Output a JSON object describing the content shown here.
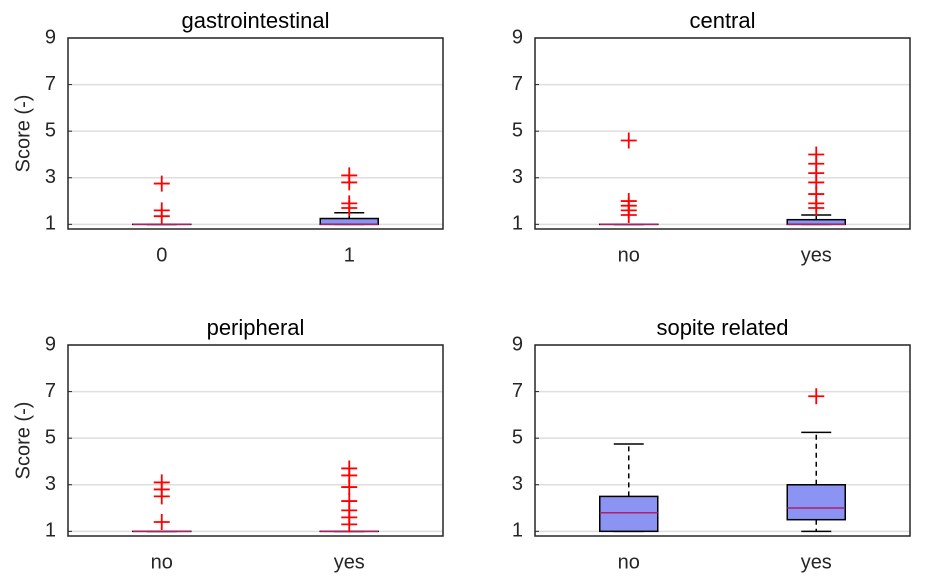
{
  "chart_data": [
    {
      "type": "box",
      "title": "gastrointestinal",
      "ylabel": "Score (-)",
      "categories": [
        "0",
        "1"
      ],
      "boxes": [
        {
          "min": 1,
          "q1": 1,
          "median": 1,
          "q3": 1,
          "max": 1,
          "outliers": [
            2.75,
            1.6,
            1.35
          ]
        },
        {
          "min": 1,
          "q1": 1,
          "median": 1,
          "q3": 1.25,
          "max": 1.5,
          "outliers": [
            3.1,
            2.8,
            1.9,
            1.7
          ]
        }
      ],
      "ylim": [
        0.8,
        9
      ],
      "yticks": [
        1,
        3,
        5,
        7,
        9
      ],
      "grid": true,
      "box_color": "#8b93f3",
      "median_color": "#b0206a",
      "outlier_color": "#ff0000"
    },
    {
      "type": "box",
      "title": "central",
      "categories": [
        "no",
        "yes"
      ],
      "boxes": [
        {
          "min": 1,
          "q1": 1,
          "median": 1,
          "q3": 1,
          "max": 1,
          "outliers": [
            4.6,
            2.0,
            1.8,
            1.6,
            1.4
          ]
        },
        {
          "min": 1,
          "q1": 1,
          "median": 1,
          "q3": 1.2,
          "max": 1.4,
          "outliers": [
            4.0,
            3.6,
            3.2,
            2.8,
            2.3,
            1.9,
            1.7
          ]
        }
      ],
      "ylim": [
        0.8,
        9
      ],
      "yticks": [
        1,
        3,
        5,
        7,
        9
      ],
      "grid": true,
      "box_color": "#8b93f3",
      "median_color": "#b0206a",
      "outlier_color": "#ff0000"
    },
    {
      "type": "box",
      "title": "peripheral",
      "ylabel": "Score (-)",
      "categories": [
        "no",
        "yes"
      ],
      "boxes": [
        {
          "min": 1,
          "q1": 1,
          "median": 1,
          "q3": 1,
          "max": 1,
          "outliers": [
            3.1,
            2.8,
            2.5,
            1.4
          ]
        },
        {
          "min": 1,
          "q1": 1,
          "median": 1,
          "q3": 1,
          "max": 1,
          "outliers": [
            3.7,
            3.4,
            2.9,
            2.3,
            1.9,
            1.6,
            1.3
          ]
        }
      ],
      "ylim": [
        0.8,
        9
      ],
      "yticks": [
        1,
        3,
        5,
        7,
        9
      ],
      "grid": true,
      "box_color": "#8b93f3",
      "median_color": "#b0206a",
      "outlier_color": "#ff0000"
    },
    {
      "type": "box",
      "title": "sopite related",
      "categories": [
        "no",
        "yes"
      ],
      "boxes": [
        {
          "min": 1,
          "q1": 1,
          "median": 1.8,
          "q3": 2.5,
          "max": 4.75,
          "outliers": []
        },
        {
          "min": 1,
          "q1": 1.5,
          "median": 2,
          "q3": 3,
          "max": 5.25,
          "outliers": [
            6.8
          ]
        }
      ],
      "ylim": [
        0.8,
        9
      ],
      "yticks": [
        1,
        3,
        5,
        7,
        9
      ],
      "grid": true,
      "box_color": "#8b93f3",
      "median_color": "#b0206a",
      "outlier_color": "#ff0000"
    }
  ]
}
